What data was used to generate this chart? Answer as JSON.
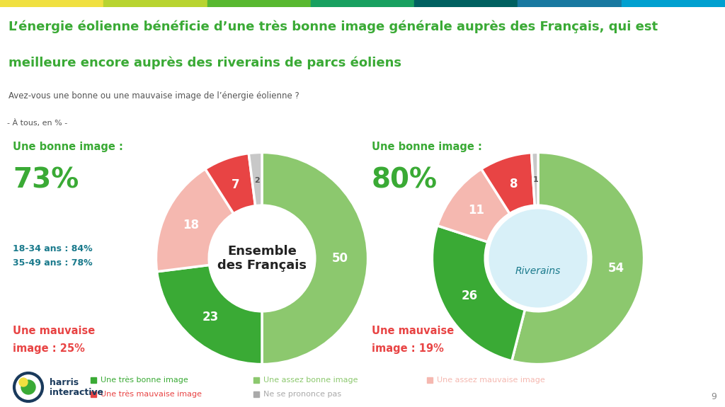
{
  "title_line1": "L’énergie éolienne bénéficie d’une très bonne image générale auprès des Français, qui est",
  "title_line2": "meilleure encore auprès des riverains de parcs éoliens",
  "subtitle": "Avez-vous une bonne ou une mauvaise image de l’énergie éolienne ?",
  "note": "- À tous, en % -",
  "chart1_label": "Ensemble\ndes Français",
  "chart2_label": "Riverains",
  "chart1_values": [
    50,
    23,
    18,
    7,
    2
  ],
  "chart2_values": [
    54,
    26,
    11,
    8,
    1
  ],
  "chart1_colors": [
    "#8cc86e",
    "#3aaa35",
    "#f5b8b0",
    "#e84444",
    "#c8c8c8"
  ],
  "chart2_colors": [
    "#8cc86e",
    "#3aaa35",
    "#f5b8b0",
    "#e84444",
    "#c8c8c8"
  ],
  "chart1_bonne": "73%",
  "chart1_mauvaise": "25%",
  "chart2_bonne": "80%",
  "chart2_mauvaise": "19%",
  "bonne_label": "Une bonne image :",
  "mauvaise_label": "Une mauvaise",
  "mauvaise_label2": "image : ",
  "bonne_color": "#3aaa35",
  "mauvaise_color": "#e84444",
  "age_line1": "18-34 ans : 84%",
  "age_line2": "35-49 ans : 78%",
  "age_color": "#1a7a8c",
  "legend_items": [
    {
      "label": "Une très bonne image",
      "color": "#3aaa35"
    },
    {
      "label": "Une très mauvaise image",
      "color": "#e84444"
    },
    {
      "label": "Une assez bonne image",
      "color": "#8cc86e"
    },
    {
      "label": "Ne se prononce pas",
      "color": "#aaaaaa"
    },
    {
      "label": "Une assez mauvaise image",
      "color": "#f5b8b0"
    }
  ],
  "top_bar_colors": [
    "#f0e040",
    "#b8d430",
    "#58b830",
    "#18a060",
    "#006060",
    "#1878a0",
    "#00a0d0"
  ],
  "bg_color": "#ffffff",
  "title_bg": "#f2f2f2",
  "sub_bg": "#e8e8e8",
  "harris_color": "#1a3a5c",
  "page_num": "9"
}
